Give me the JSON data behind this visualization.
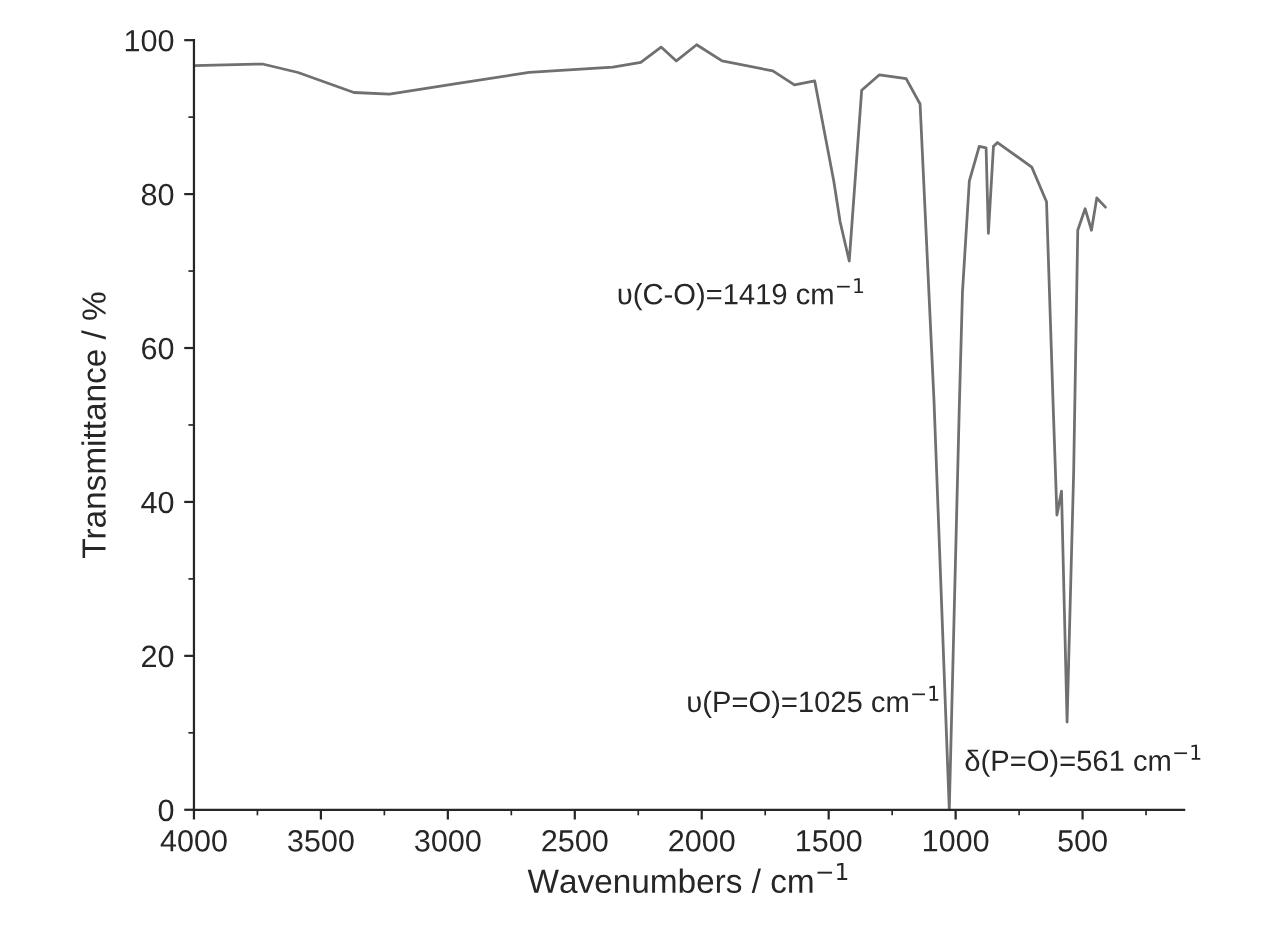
{
  "chart_data": {
    "type": "line",
    "xlabel": "Wavenumbers / cm$^{−1}$",
    "ylabel": "Transmittance / %",
    "xlim": [
      4000,
      100
    ],
    "ylim": [
      0,
      100
    ],
    "xticks": [
      4000,
      3500,
      3000,
      2500,
      2000,
      1500,
      1000,
      500
    ],
    "yticks": [
      0,
      20,
      40,
      60,
      80,
      100
    ],
    "grid": false,
    "legend": false,
    "marker": "none",
    "line_style": "solid",
    "series": [
      {
        "color": "#707070",
        "x": [
          4000,
          3730,
          3590,
          3370,
          3230,
          2960,
          2680,
          2350,
          2240,
          2160,
          2100,
          2020,
          1920,
          1720,
          1635,
          1555,
          1480,
          1455,
          1419,
          1370,
          1300,
          1195,
          1140,
          1085,
          1025,
          985,
          973,
          946,
          907,
          880,
          871,
          851,
          835,
          700,
          642,
          615,
          601,
          583,
          561,
          535,
          519,
          490,
          465,
          444,
          410
        ],
        "values": [
          96.7,
          96.9,
          95.8,
          93.2,
          93.0,
          94.4,
          95.8,
          96.5,
          97.1,
          99.1,
          97.3,
          99.4,
          97.3,
          96.0,
          94.2,
          94.7,
          81.7,
          76.4,
          71.3,
          93.5,
          95.5,
          95.0,
          91.7,
          53,
          0,
          53,
          67.3,
          81.7,
          86.2,
          86,
          74.9,
          86.2,
          86.7,
          83.5,
          79,
          51.7,
          38.3,
          41.4,
          11.4,
          44,
          75.3,
          78.1,
          75.3,
          79.5,
          78.3
        ]
      }
    ],
    "annotations": [
      {
        "text": "υ(C-O)=1419 cm$^{−1}$",
        "x": 1419,
        "y": 71.3
      },
      {
        "text": "υ(P=O)=1025 cm$^{−1}$",
        "x": 1025,
        "y": 14
      },
      {
        "text": "δ(P=O)=561 cm$^{−1}$",
        "x": 561,
        "y": 11.4
      }
    ]
  }
}
